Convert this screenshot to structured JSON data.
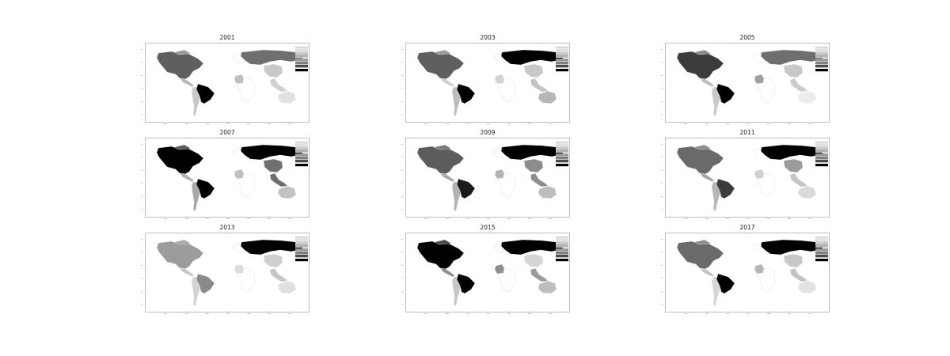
{
  "figure": {
    "panels": [
      {
        "year": "2001",
        "shades": {
          "north_america": "#5f5f5f",
          "greenland": "#9a9a9a",
          "central_america": "#b8b8b8",
          "south_america": "#c8c8c8",
          "brazil": "#000000",
          "russia": "#6f6f6f",
          "china": "#c9c9c9",
          "europe": "#ffffff",
          "africa": "#ffffff",
          "middle_east": "#bebebe",
          "se_asia": "#d0d0d0",
          "australia": "#e2e2e2"
        }
      },
      {
        "year": "2003",
        "shades": {
          "north_america": "#5f5f5f",
          "greenland": "#9a9a9a",
          "central_america": "#d0d0d0",
          "south_america": "#bdbdbd",
          "brazil": "#000000",
          "russia": "#000000",
          "china": "#c8c8c8",
          "europe": "#ffffff",
          "africa": "#ffffff",
          "middle_east": "#d2d2d2",
          "se_asia": "#c4c4c4",
          "australia": "#b7b7b7"
        }
      },
      {
        "year": "2005",
        "shades": {
          "north_america": "#3c3c3c",
          "greenland": "#8a8a8a",
          "central_america": "#bcbcbc",
          "south_america": "#cacaca",
          "brazil": "#000000",
          "russia": "#6f6f6f",
          "china": "#c8c8c8",
          "europe": "#ffffff",
          "africa": "#ffffff",
          "middle_east": "#9f9f9f",
          "se_asia": "#cacaca",
          "australia": "#ebebeb"
        }
      },
      {
        "year": "2007",
        "shades": {
          "north_america": "#000000",
          "greenland": "#5c5c5c",
          "central_america": "#b0b0b0",
          "south_america": "#a9a9a9",
          "brazil": "#000000",
          "russia": "#000000",
          "china": "#707070",
          "europe": "#ffffff",
          "africa": "#ffffff",
          "middle_east": "#bfbfbf",
          "se_asia": "#6e6e6e",
          "australia": "#c2c2c2"
        }
      },
      {
        "year": "2009",
        "shades": {
          "north_america": "#5c5c5c",
          "greenland": "#7a7a7a",
          "central_america": "#a8a8a8",
          "south_america": "#b3b3b3",
          "brazil": "#1a1a1a",
          "russia": "#000000",
          "china": "#8c8c8c",
          "europe": "#ffffff",
          "africa": "#ffffff",
          "middle_east": "#b5b5b5",
          "se_asia": "#8c8c8c",
          "australia": "#bdbdbd"
        }
      },
      {
        "year": "2011",
        "shades": {
          "north_america": "#6a6a6a",
          "greenland": "#8e8e8e",
          "central_america": "#a6a6a6",
          "south_america": "#b6b6b6",
          "brazil": "#3c3c3c",
          "russia": "#000000",
          "china": "#9b9b9b",
          "europe": "#ffffff",
          "africa": "#ffffff",
          "middle_east": "#d0d0d0",
          "se_asia": "#c4c4c4",
          "australia": "#dadada"
        }
      },
      {
        "year": "2013",
        "shades": {
          "north_america": "#9c9c9c",
          "greenland": "#aaaaaa",
          "central_america": "#c6c6c6",
          "south_america": "#d2d2d2",
          "brazil": "#8b8b8b",
          "russia": "#000000",
          "china": "#cecece",
          "europe": "#ffffff",
          "africa": "#ffffff",
          "middle_east": "#dcdcdc",
          "se_asia": "#c6c6c6",
          "australia": "#e0e0e0"
        }
      },
      {
        "year": "2015",
        "shades": {
          "north_america": "#000000",
          "greenland": "#4a4a4a",
          "central_america": "#8c8c8c",
          "south_america": "#c8c8c8",
          "brazil": "#000000",
          "russia": "#000000",
          "china": "#d6d6d6",
          "europe": "#ffffff",
          "africa": "#ffffff",
          "middle_east": "#8f8f8f",
          "se_asia": "#9b9b9b",
          "australia": "#bdbdbd"
        }
      },
      {
        "year": "2017",
        "shades": {
          "north_america": "#6a6a6a",
          "greenland": "#8e8e8e",
          "central_america": "#c2c2c2",
          "south_america": "#d6d6d6",
          "brazil": "#000000",
          "russia": "#000000",
          "china": "#c8c8c8",
          "europe": "#ffffff",
          "africa": "#ffffff",
          "middle_east": "#b5b5b5",
          "se_asia": "#c4c4c4",
          "australia": "#e2e2e2"
        }
      }
    ],
    "legend_shades": [
      "#ffffff",
      "#e6e6e6",
      "#cccccc",
      "#b3b3b3",
      "#999999",
      "#7f7f7f",
      "#4c4c4c",
      "#000000"
    ]
  }
}
